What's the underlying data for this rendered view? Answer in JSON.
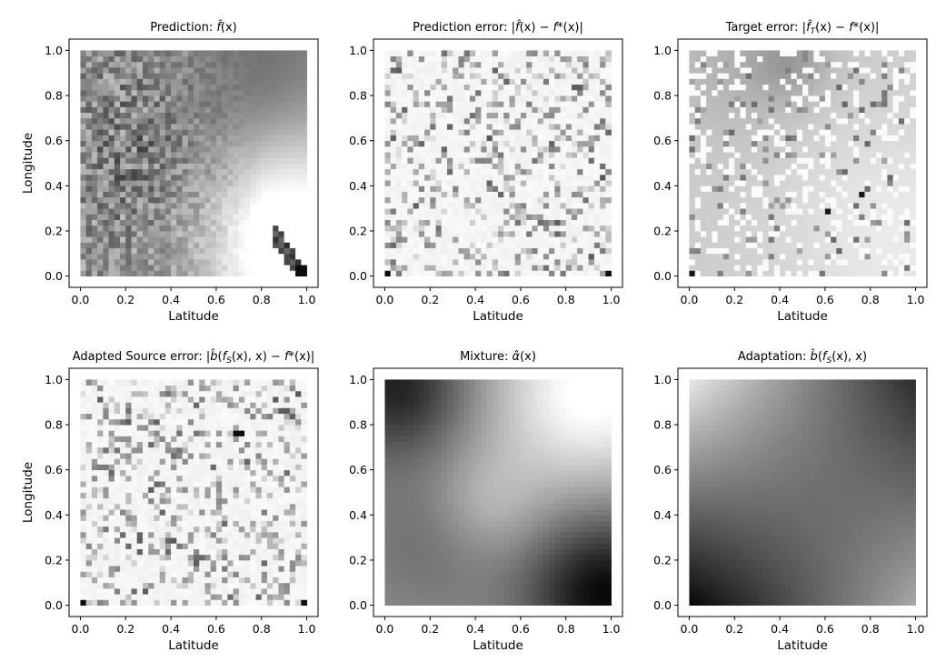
{
  "chart_data": [
    {
      "type": "heatmap",
      "title": "Prediction: f̂(x)",
      "title_parts": [
        "Prediction: ",
        "f̂",
        "(x)"
      ],
      "xlabel": "Latitude",
      "ylabel": "Longitude",
      "xlim": [
        -0.05,
        1.05
      ],
      "ylim": [
        -0.05,
        1.05
      ],
      "xticks": [
        "0.0",
        "0.2",
        "0.4",
        "0.6",
        "0.8",
        "1.0"
      ],
      "yticks": [
        "0.0",
        "0.2",
        "0.4",
        "0.6",
        "0.8",
        "1.0"
      ],
      "colormap": "gray-white-to-black",
      "grid_size": 40,
      "data_extent": [
        0,
        1,
        0,
        1
      ],
      "pattern": "noisy-prediction",
      "notes": "dark noisy band on left half, smooth darker top-right, lighter bottom-right with dark diagonal streak to corner (1,0)"
    },
    {
      "type": "heatmap",
      "title": "Prediction error: |f̂(x) − f*(x)|",
      "title_parts": [
        "Prediction error: |",
        "f̂",
        "(x) − ",
        "f*",
        "(x)|"
      ],
      "xlabel": "Latitude",
      "ylabel": "",
      "xlim": [
        -0.05,
        1.05
      ],
      "ylim": [
        -0.05,
        1.05
      ],
      "xticks": [
        "0.0",
        "0.2",
        "0.4",
        "0.6",
        "0.8",
        "1.0"
      ],
      "yticks": [
        "0.0",
        "0.2",
        "0.4",
        "0.6",
        "0.8",
        "1.0"
      ],
      "colormap": "gray-white-to-black",
      "grid_size": 40,
      "data_extent": [
        0,
        1,
        0,
        1
      ],
      "pattern": "sparse-error",
      "hotspots": [
        [
          0.02,
          0.0
        ],
        [
          0.98,
          0.0
        ]
      ]
    },
    {
      "type": "heatmap",
      "title": "Target error: |f̂_T(x) − f*(x)|",
      "title_parts": [
        "Target error: |",
        "f̂",
        "T",
        "(x) − ",
        "f*",
        "(x)|"
      ],
      "xlabel": "Latitude",
      "ylabel": "",
      "xlim": [
        -0.05,
        1.05
      ],
      "ylim": [
        -0.05,
        1.05
      ],
      "xticks": [
        "0.0",
        "0.2",
        "0.4",
        "0.6",
        "0.8",
        "1.0"
      ],
      "yticks": [
        "0.0",
        "0.2",
        "0.4",
        "0.6",
        "0.8",
        "1.0"
      ],
      "colormap": "gray-white-to-black",
      "grid_size": 40,
      "data_extent": [
        0,
        1,
        0,
        1
      ],
      "pattern": "target-error",
      "hotspots": [
        [
          0.61,
          0.28
        ],
        [
          0.76,
          0.36
        ],
        [
          0.02,
          0.0
        ]
      ]
    },
    {
      "type": "heatmap",
      "title": "Adapted Source error: |b̂(f_S(x), x) − f*(x)|",
      "title_parts": [
        "Adapted Source error: |",
        "b̂",
        "(",
        "f",
        "S",
        "(x), x) − ",
        "f*",
        "(x)|"
      ],
      "xlabel": "Latitude",
      "ylabel": "Longitude",
      "xlim": [
        -0.05,
        1.05
      ],
      "ylim": [
        -0.05,
        1.05
      ],
      "xticks": [
        "0.0",
        "0.2",
        "0.4",
        "0.6",
        "0.8",
        "1.0"
      ],
      "yticks": [
        "0.0",
        "0.2",
        "0.4",
        "0.6",
        "0.8",
        "1.0"
      ],
      "colormap": "gray-white-to-black",
      "grid_size": 40,
      "data_extent": [
        0,
        1,
        0,
        1
      ],
      "pattern": "sparse-error",
      "hotspots": [
        [
          0.02,
          0.0
        ],
        [
          0.98,
          0.0
        ],
        [
          0.7,
          0.76
        ]
      ]
    },
    {
      "type": "heatmap",
      "title": "Mixture: α̂(x)",
      "title_parts": [
        "Mixture: ",
        "α̂",
        "(x)"
      ],
      "xlabel": "Latitude",
      "ylabel": "",
      "xlim": [
        -0.05,
        1.05
      ],
      "ylim": [
        -0.05,
        1.05
      ],
      "xticks": [
        "0.0",
        "0.2",
        "0.4",
        "0.6",
        "0.8",
        "1.0"
      ],
      "yticks": [
        "0.0",
        "0.2",
        "0.4",
        "0.6",
        "0.8",
        "1.0"
      ],
      "colormap": "gray-white-to-black",
      "grid_size": 40,
      "data_extent": [
        0,
        1,
        0,
        1
      ],
      "pattern": "mixture",
      "notes": "dark top-left and bottom-right corners, white top-right, mid-gray elsewhere"
    },
    {
      "type": "heatmap",
      "title": "Adaptation: b̂(f_S(x), x)",
      "title_parts": [
        "Adaptation: ",
        "b̂",
        "(",
        "f",
        "S",
        "(x), x)"
      ],
      "xlabel": "Latitude",
      "ylabel": "",
      "xlim": [
        -0.05,
        1.05
      ],
      "ylim": [
        -0.05,
        1.05
      ],
      "xticks": [
        "0.0",
        "0.2",
        "0.4",
        "0.6",
        "0.8",
        "1.0"
      ],
      "yticks": [
        "0.0",
        "0.2",
        "0.4",
        "0.6",
        "0.8",
        "1.0"
      ],
      "colormap": "gray-white-to-black",
      "grid_size": 40,
      "data_extent": [
        0,
        1,
        0,
        1
      ],
      "pattern": "adaptation",
      "notes": "black at bottom-left, white at top-left, dark at top-right, light at bottom-right"
    }
  ]
}
